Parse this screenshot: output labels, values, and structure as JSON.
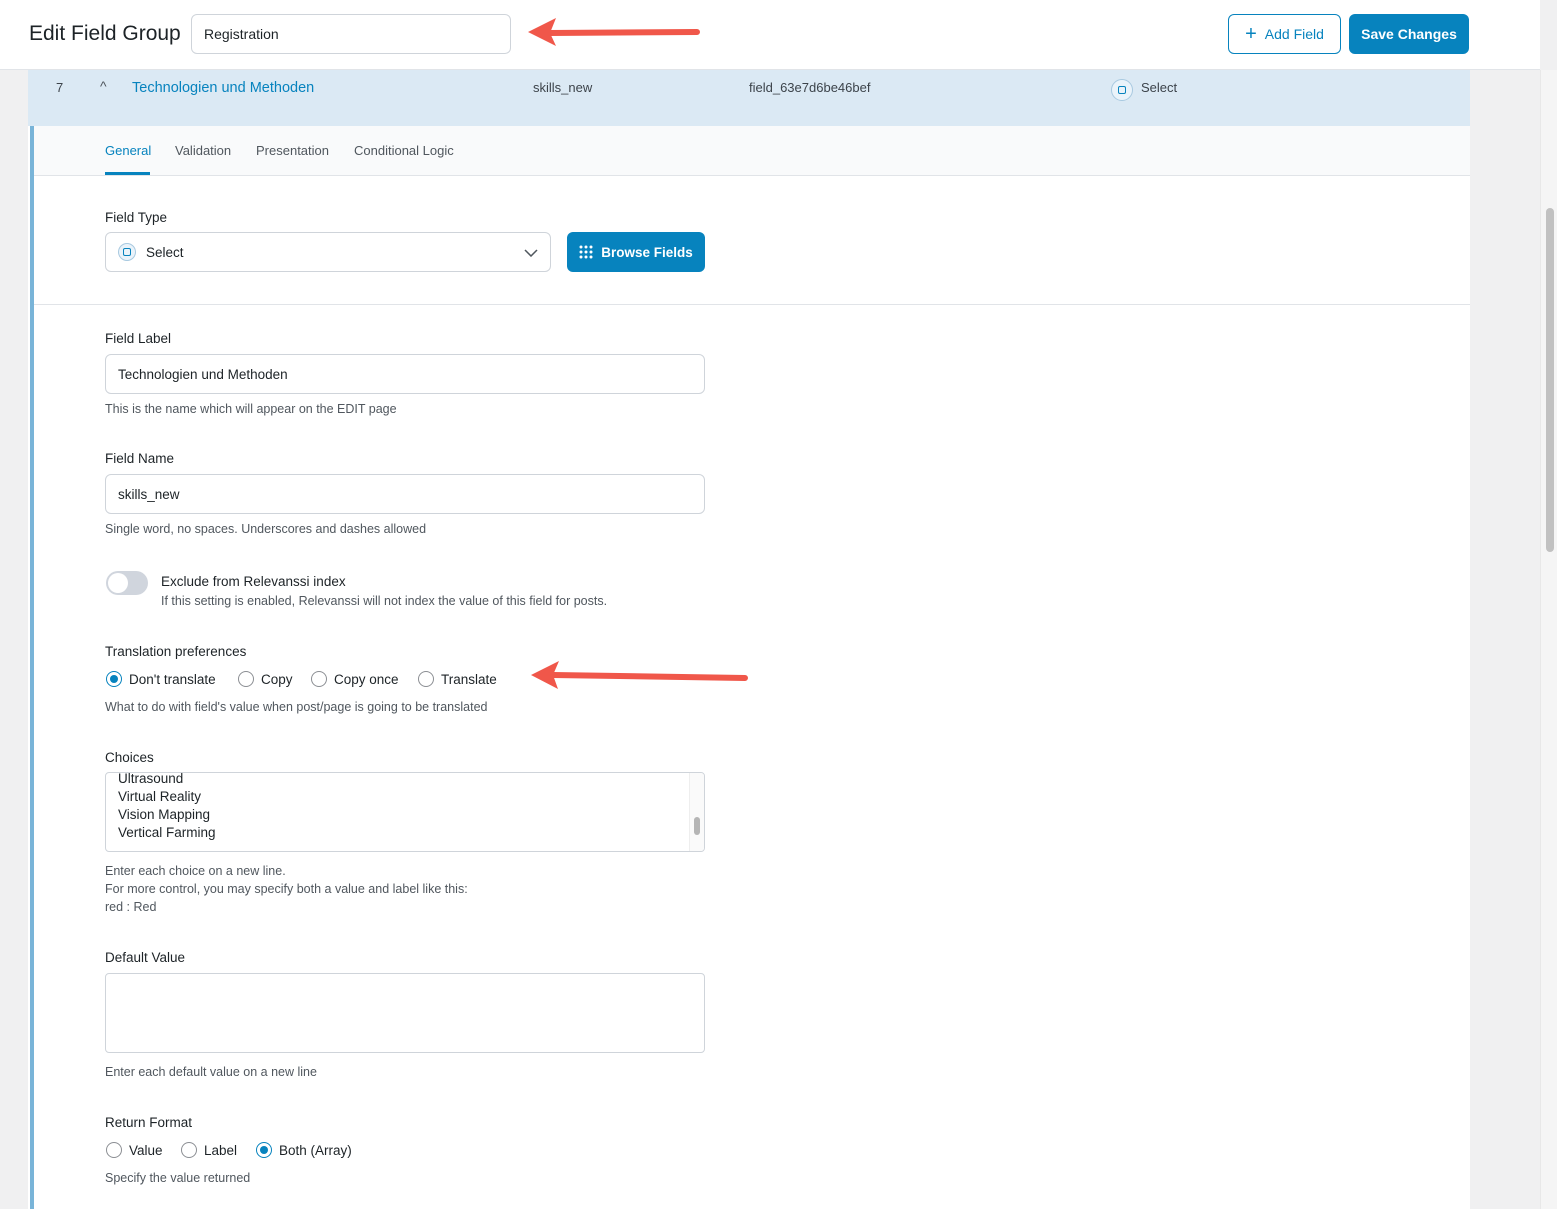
{
  "header": {
    "title": "Edit Field Group",
    "group_title": "Registration",
    "add_field_label": "Add Field",
    "save_label": "Save Changes"
  },
  "field_row": {
    "order": "7",
    "label": "Technologien und Methoden",
    "name": "skills_new",
    "key": "field_63e7d6be46bef",
    "type": "Select"
  },
  "tabs": [
    {
      "label": "General",
      "active": true
    },
    {
      "label": "Validation"
    },
    {
      "label": "Presentation"
    },
    {
      "label": "Conditional Logic"
    }
  ],
  "field_type": {
    "label": "Field Type",
    "value": "Select",
    "browse_label": "Browse Fields"
  },
  "field_label": {
    "label": "Field Label",
    "value": "Technologien und Methoden",
    "help": "This is the name which will appear on the EDIT page"
  },
  "field_name": {
    "label": "Field Name",
    "value": "skills_new",
    "help": "Single word, no spaces. Underscores and dashes allowed"
  },
  "relevanssi": {
    "label": "Exclude from Relevanssi index",
    "help": "If this setting is enabled, Relevanssi will not index the value of this field for posts.",
    "enabled": false
  },
  "translation": {
    "label": "Translation preferences",
    "options": [
      "Don't translate",
      "Copy",
      "Copy once",
      "Translate"
    ],
    "selected": "Don't translate",
    "help": "What to do with field's value when post/page is going to be translated"
  },
  "choices": {
    "label": "Choices",
    "visible_lines": [
      "Ultrasound",
      "Virtual Reality",
      "Vision Mapping",
      "Vertical Farming"
    ],
    "help": [
      "Enter each choice on a new line.",
      "For more control, you may specify both a value and label like this:",
      "red : Red"
    ]
  },
  "default_value": {
    "label": "Default Value",
    "value": "",
    "help": "Enter each default value on a new line"
  },
  "return_format": {
    "label": "Return Format",
    "options": [
      "Value",
      "Label",
      "Both (Array)"
    ],
    "selected": "Both (Array)",
    "help": "Specify the value returned"
  },
  "colors": {
    "accent": "#0783be",
    "row_highlight": "#dbe9f4",
    "annotation_arrow": "#f0574a"
  }
}
